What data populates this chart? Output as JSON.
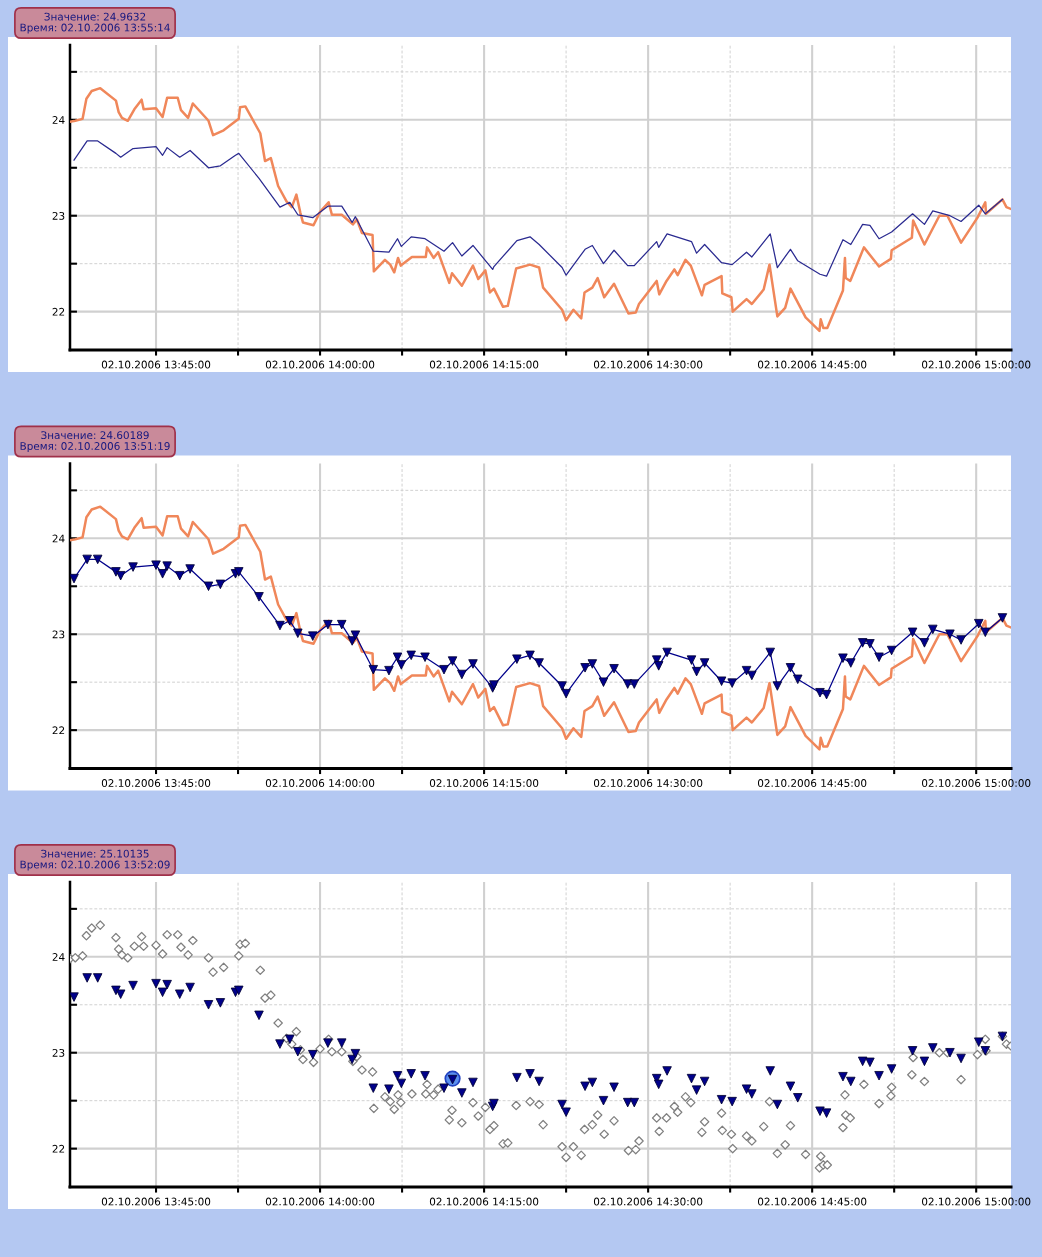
{
  "chart_data": [
    {
      "type": "line",
      "xlim": [
        "2006-10-02T13:37:08",
        "2006-10-02T15:03:11"
      ],
      "ylim": [
        21.6,
        24.78
      ],
      "grid": true,
      "xticks": [
        {
          "value": "2006-10-02T13:45",
          "label": "02.10.2006 13:45:00"
        },
        {
          "value": "2006-10-02T13:52:30",
          "label": null
        },
        {
          "value": "2006-10-02T14:00",
          "label": "02.10.2006 14:00:00"
        },
        {
          "value": "2006-10-02T14:07:30",
          "label": null
        },
        {
          "value": "2006-10-02T14:15",
          "label": "02.10.2006 14:15:00"
        },
        {
          "value": "2006-10-02T14:22:30",
          "label": null
        },
        {
          "value": "2006-10-02T14:30",
          "label": "02.10.2006 14:30:00"
        },
        {
          "value": "2006-10-02T14:37:30",
          "label": null
        },
        {
          "value": "2006-10-02T14:45",
          "label": "02.10.2006 14:45:00"
        },
        {
          "value": "2006-10-02T14:52:30",
          "label": null
        },
        {
          "value": "2006-10-02T15:00",
          "label": "02.10.2006 15:00:00"
        }
      ],
      "yticks": [
        22,
        {
          "value": 22.5,
          "label": null
        },
        23,
        {
          "value": 23.5,
          "label": null
        },
        24,
        {
          "value": 24.5,
          "label": null
        }
      ],
      "annotations": [
        "Значение: 24.9632\nВремя: 02.10.2006 13:55:14"
      ],
      "series": [
        {
          "color": "#f0875a",
          "line_style": "solid",
          "x": [
            "2006-10-02T13:37:08",
            "2006-10-02T13:37:37",
            "2006-10-02T13:38:17",
            "2006-10-02T13:38:38",
            "2006-10-02T13:39:07",
            "2006-10-02T13:39:54",
            "2006-10-02T13:41:20",
            "2006-10-02T13:41:35",
            "2006-10-02T13:41:53",
            "2006-10-02T13:42:25",
            "2006-10-02T13:43:01",
            "2006-10-02T13:43:41",
            "2006-10-02T13:43:52",
            "2006-10-02T13:45:00",
            "2006-10-02T13:45:36",
            "2006-10-02T13:46:01",
            "2006-10-02T13:46:59",
            "2006-10-02T13:47:17",
            "2006-10-02T13:47:56",
            "2006-10-02T13:48:22",
            "2006-10-02T13:49:48",
            "2006-10-02T13:50:13",
            "2006-10-02T13:51:11",
            "2006-10-02T13:52:34",
            "2006-10-02T13:52:41",
            "2006-10-02T13:53:10",
            "2006-10-02T13:54:32",
            "2006-10-02T13:54:58",
            "2006-10-02T13:55:30",
            "2006-10-02T13:56:10",
            "2006-10-02T13:56:56",
            "2006-10-02T13:57:25",
            "2006-10-02T13:57:50",
            "2006-10-02T13:58:12",
            "2006-10-02T13:58:26",
            "2006-10-02T13:59:24",
            "2006-10-02T14:00:00",
            "2006-10-02T14:00:47",
            "2006-10-02T14:01:05",
            "2006-10-02T14:01:59",
            "2006-10-02T14:03:00",
            "2006-10-02T14:03:22",
            "2006-10-02T14:03:50",
            "2006-10-02T14:04:48",
            "2006-10-02T14:04:55",
            "2006-10-02T14:05:56",
            "2006-10-02T14:06:25",
            "2006-10-02T14:06:47",
            "2006-10-02T14:07:08",
            "2006-10-02T14:07:23",
            "2006-10-02T14:08:24",
            "2006-10-02T14:09:40",
            "2006-10-02T14:09:47",
            "2006-10-02T14:10:23",
            "2006-10-02T14:10:48",
            "2006-10-02T14:11:49",
            "2006-10-02T14:12:04",
            "2006-10-02T14:12:58",
            "2006-10-02T14:13:59",
            "2006-10-02T14:14:28",
            "2006-10-02T14:15:07",
            "2006-10-02T14:15:32",
            "2006-10-02T14:15:54",
            "2006-10-02T14:16:44",
            "2006-10-02T14:17:10",
            "2006-10-02T14:17:56",
            "2006-10-02T14:19:12",
            "2006-10-02T14:20:02",
            "2006-10-02T14:20:24",
            "2006-10-02T14:22:08",
            "2006-10-02T14:22:30",
            "2006-10-02T14:23:10",
            "2006-10-02T14:23:53",
            "2006-10-02T14:24:11",
            "2006-10-02T14:24:54",
            "2006-10-02T14:25:23",
            "2006-10-02T14:25:59",
            "2006-10-02T14:26:53",
            "2006-10-02T14:28:12",
            "2006-10-02T14:28:52",
            "2006-10-02T14:29:10",
            "2006-10-02T14:30:47",
            "2006-10-02T14:31:01",
            "2006-10-02T14:31:41",
            "2006-10-02T14:32:24",
            "2006-10-02T14:32:42",
            "2006-10-02T14:33:25",
            "2006-10-02T14:33:54",
            "2006-10-02T14:34:55",
            "2006-10-02T14:35:10",
            "2006-10-02T14:36:43",
            "2006-10-02T14:36:47",
            "2006-10-02T14:37:37",
            "2006-10-02T14:37:44",
            "2006-10-02T14:39:00",
            "2006-10-02T14:39:29",
            "2006-10-02T14:40:34",
            "2006-10-02T14:41:06",
            "2006-10-02T14:41:49",
            "2006-10-02T14:42:32",
            "2006-10-02T14:43:01",
            "2006-10-02T14:44:24",
            "2006-10-02T14:45:40",
            "2006-10-02T14:45:47",
            "2006-10-02T14:46:01",
            "2006-10-02T14:46:23",
            "2006-10-02T14:47:49",
            "2006-10-02T14:48:00",
            "2006-10-02T14:48:04",
            "2006-10-02T14:48:29",
            "2006-10-02T14:49:44",
            "2006-10-02T14:51:07",
            "2006-10-02T14:52:12",
            "2006-10-02T14:52:16",
            "2006-10-02T14:54:07",
            "2006-10-02T14:54:14",
            "2006-10-02T14:55:16",
            "2006-10-02T14:56:38",
            "2006-10-02T14:57:22",
            "2006-10-02T14:58:37",
            "2006-10-02T15:00:07",
            "2006-10-02T15:00:50",
            "2006-10-02T15:00:54",
            "2006-10-02T15:02:24",
            "2006-10-02T15:02:46",
            "2006-10-02T15:03:11"
          ],
          "values": [
            23.98,
            23.99,
            24.01,
            24.22,
            24.3,
            24.33,
            24.2,
            24.08,
            24.02,
            23.99,
            24.11,
            24.21,
            24.11,
            24.12,
            24.03,
            24.23,
            24.23,
            24.1,
            24.02,
            24.17,
            23.99,
            23.84,
            23.89,
            24.01,
            24.13,
            24.14,
            23.86,
            23.57,
            23.6,
            23.31,
            23.15,
            23.09,
            23.22,
            23.03,
            22.93,
            22.9,
            23.04,
            23.14,
            23.01,
            23.01,
            22.91,
            22.96,
            22.82,
            22.8,
            22.42,
            22.54,
            22.49,
            22.41,
            22.56,
            22.48,
            22.57,
            22.57,
            22.67,
            22.56,
            22.62,
            22.3,
            22.4,
            22.27,
            22.48,
            22.34,
            22.43,
            22.2,
            22.24,
            22.05,
            22.06,
            22.45,
            22.49,
            22.46,
            22.25,
            22.02,
            21.91,
            22.02,
            21.93,
            22.2,
            22.25,
            22.35,
            22.15,
            22.29,
            21.98,
            21.99,
            22.08,
            22.32,
            22.18,
            22.32,
            22.44,
            22.38,
            22.54,
            22.48,
            22.17,
            22.28,
            22.37,
            22.19,
            22.15,
            22.0,
            22.13,
            22.08,
            22.23,
            22.49,
            21.95,
            22.04,
            22.24,
            21.94,
            21.8,
            21.92,
            21.83,
            21.83,
            22.22,
            22.56,
            22.35,
            22.32,
            22.67,
            22.47,
            22.55,
            22.64,
            22.77,
            22.95,
            22.7,
            23.0,
            23.0,
            22.72,
            22.98,
            23.14,
            23.02,
            23.17,
            23.09,
            23.07
          ]
        },
        {
          "color": "#2a2a90",
          "line_style": "solid",
          "x": [
            "2006-10-02T13:37:30",
            "2006-10-02T13:38:42",
            "2006-10-02T13:39:40",
            "2006-10-02T13:41:20",
            "2006-10-02T13:41:46",
            "2006-10-02T13:42:54",
            "2006-10-02T13:45:00",
            "2006-10-02T13:45:36",
            "2006-10-02T13:46:01",
            "2006-10-02T13:47:10",
            "2006-10-02T13:48:07",
            "2006-10-02T13:49:48",
            "2006-10-02T13:50:53",
            "2006-10-02T13:52:16",
            "2006-10-02T13:52:34",
            "2006-10-02T13:54:25",
            "2006-10-02T13:56:20",
            "2006-10-02T13:57:14",
            "2006-10-02T13:57:58",
            "2006-10-02T13:59:20",
            "2006-10-02T14:00:43",
            "2006-10-02T14:01:59",
            "2006-10-02T14:02:56",
            "2006-10-02T14:03:14",
            "2006-10-02T14:04:52",
            "2006-10-02T14:06:18",
            "2006-10-02T14:07:05",
            "2006-10-02T14:07:26",
            "2006-10-02T14:08:20",
            "2006-10-02T14:09:36",
            "2006-10-02T14:11:20",
            "2006-10-02T14:12:07",
            "2006-10-02T14:12:58",
            "2006-10-02T14:13:59",
            "2006-10-02T14:15:47",
            "2006-10-02T14:15:54",
            "2006-10-02T14:18:00",
            "2006-10-02T14:19:12",
            "2006-10-02T14:20:02",
            "2006-10-02T14:22:08",
            "2006-10-02T14:22:30",
            "2006-10-02T14:24:14",
            "2006-10-02T14:24:54",
            "2006-10-02T14:25:55",
            "2006-10-02T14:26:53",
            "2006-10-02T14:28:08",
            "2006-10-02T14:28:44",
            "2006-10-02T14:30:47",
            "2006-10-02T14:30:58",
            "2006-10-02T14:31:44",
            "2006-10-02T14:33:58",
            "2006-10-02T14:34:26",
            "2006-10-02T14:35:10",
            "2006-10-02T14:36:43",
            "2006-10-02T14:37:41",
            "2006-10-02T14:39:00",
            "2006-10-02T14:39:29",
            "2006-10-02T14:41:10",
            "2006-10-02T14:41:49",
            "2006-10-02T14:43:01",
            "2006-10-02T14:43:41",
            "2006-10-02T14:45:43",
            "2006-10-02T14:46:19",
            "2006-10-02T14:47:49",
            "2006-10-02T14:48:32",
            "2006-10-02T14:49:37",
            "2006-10-02T14:50:17",
            "2006-10-02T14:51:07",
            "2006-10-02T14:52:16",
            "2006-10-02T14:54:11",
            "2006-10-02T14:55:16",
            "2006-10-02T14:56:02",
            "2006-10-02T14:57:36",
            "2006-10-02T14:58:37",
            "2006-10-02T15:00:14",
            "2006-10-02T15:00:50",
            "2006-10-02T15:02:24"
          ],
          "values": [
            23.58,
            23.78,
            23.78,
            23.65,
            23.61,
            23.7,
            23.72,
            23.63,
            23.71,
            23.61,
            23.68,
            23.5,
            23.52,
            23.63,
            23.65,
            23.39,
            23.09,
            23.14,
            23.01,
            22.98,
            23.1,
            23.1,
            22.93,
            22.99,
            22.63,
            22.62,
            22.76,
            22.68,
            22.78,
            22.76,
            22.63,
            22.72,
            22.58,
            22.69,
            22.44,
            22.47,
            22.74,
            22.78,
            22.7,
            22.46,
            22.38,
            22.65,
            22.69,
            22.5,
            22.64,
            22.48,
            22.48,
            22.73,
            22.67,
            22.81,
            22.73,
            22.61,
            22.7,
            22.51,
            22.49,
            22.62,
            22.57,
            22.81,
            22.46,
            22.65,
            22.53,
            22.39,
            22.37,
            22.75,
            22.7,
            22.91,
            22.9,
            22.76,
            22.83,
            23.02,
            22.91,
            23.05,
            23.0,
            22.94,
            23.11,
            23.02,
            23.17
          ]
        }
      ]
    },
    {
      "type": "line",
      "xlim": [
        "2006-10-02T13:37:08",
        "2006-10-02T15:03:11"
      ],
      "ylim": [
        21.6,
        24.78
      ],
      "grid": true,
      "xticks": [
        {
          "value": "2006-10-02T13:45",
          "label": "02.10.2006 13:45:00"
        },
        {
          "value": "2006-10-02T13:52:30",
          "label": null
        },
        {
          "value": "2006-10-02T14:00",
          "label": "02.10.2006 14:00:00"
        },
        {
          "value": "2006-10-02T14:07:30",
          "label": null
        },
        {
          "value": "2006-10-02T14:15",
          "label": "02.10.2006 14:15:00"
        },
        {
          "value": "2006-10-02T14:22:30",
          "label": null
        },
        {
          "value": "2006-10-02T14:30",
          "label": "02.10.2006 14:30:00"
        },
        {
          "value": "2006-10-02T14:37:30",
          "label": null
        },
        {
          "value": "2006-10-02T14:45",
          "label": "02.10.2006 14:45:00"
        },
        {
          "value": "2006-10-02T14:52:30",
          "label": null
        },
        {
          "value": "2006-10-02T15:00",
          "label": "02.10.2006 15:00:00"
        }
      ],
      "yticks": [
        22,
        {
          "value": 22.5,
          "label": null
        },
        23,
        {
          "value": 23.5,
          "label": null
        },
        24,
        {
          "value": 24.5,
          "label": null
        }
      ],
      "annotations": [
        "Значение: 24.60189\nВремя: 02.10.2006 13:51:19"
      ],
      "series": [
        {
          "color": "#f0875a",
          "line_style": "solid",
          "x": [
            "2006-10-02T13:37:08",
            "2006-10-02T13:37:37",
            "2006-10-02T13:38:17",
            "2006-10-02T13:38:38",
            "2006-10-02T13:39:07",
            "2006-10-02T13:39:54",
            "2006-10-02T13:41:20",
            "2006-10-02T13:41:35",
            "2006-10-02T13:41:53",
            "2006-10-02T13:42:25",
            "2006-10-02T13:43:01",
            "2006-10-02T13:43:41",
            "2006-10-02T13:43:52",
            "2006-10-02T13:45:00",
            "2006-10-02T13:45:36",
            "2006-10-02T13:46:01",
            "2006-10-02T13:46:59",
            "2006-10-02T13:47:17",
            "2006-10-02T13:47:56",
            "2006-10-02T13:48:22",
            "2006-10-02T13:49:48",
            "2006-10-02T13:50:13",
            "2006-10-02T13:51:11",
            "2006-10-02T13:52:34",
            "2006-10-02T13:52:41",
            "2006-10-02T13:53:10",
            "2006-10-02T13:54:32",
            "2006-10-02T13:54:58",
            "2006-10-02T13:55:30",
            "2006-10-02T13:56:10",
            "2006-10-02T13:56:56",
            "2006-10-02T13:57:25",
            "2006-10-02T13:57:50",
            "2006-10-02T13:58:12",
            "2006-10-02T13:58:26",
            "2006-10-02T13:59:24",
            "2006-10-02T14:00:00",
            "2006-10-02T14:00:47",
            "2006-10-02T14:01:05",
            "2006-10-02T14:01:59",
            "2006-10-02T14:03:00",
            "2006-10-02T14:03:22",
            "2006-10-02T14:03:50",
            "2006-10-02T14:04:48",
            "2006-10-02T14:04:55",
            "2006-10-02T14:05:56",
            "2006-10-02T14:06:25",
            "2006-10-02T14:06:47",
            "2006-10-02T14:07:08",
            "2006-10-02T14:07:23",
            "2006-10-02T14:08:24",
            "2006-10-02T14:09:40",
            "2006-10-02T14:09:47",
            "2006-10-02T14:10:23",
            "2006-10-02T14:10:48",
            "2006-10-02T14:11:49",
            "2006-10-02T14:12:04",
            "2006-10-02T14:12:58",
            "2006-10-02T14:13:59",
            "2006-10-02T14:14:28",
            "2006-10-02T14:15:07",
            "2006-10-02T14:15:32",
            "2006-10-02T14:15:54",
            "2006-10-02T14:16:44",
            "2006-10-02T14:17:10",
            "2006-10-02T14:17:56",
            "2006-10-02T14:19:12",
            "2006-10-02T14:20:02",
            "2006-10-02T14:20:24",
            "2006-10-02T14:22:08",
            "2006-10-02T14:22:30",
            "2006-10-02T14:23:10",
            "2006-10-02T14:23:53",
            "2006-10-02T14:24:11",
            "2006-10-02T14:24:54",
            "2006-10-02T14:25:23",
            "2006-10-02T14:25:59",
            "2006-10-02T14:26:53",
            "2006-10-02T14:28:12",
            "2006-10-02T14:28:52",
            "2006-10-02T14:29:10",
            "2006-10-02T14:30:47",
            "2006-10-02T14:31:01",
            "2006-10-02T14:31:41",
            "2006-10-02T14:32:24",
            "2006-10-02T14:32:42",
            "2006-10-02T14:33:25",
            "2006-10-02T14:33:54",
            "2006-10-02T14:34:55",
            "2006-10-02T14:35:10",
            "2006-10-02T14:36:43",
            "2006-10-02T14:36:47",
            "2006-10-02T14:37:37",
            "2006-10-02T14:37:44",
            "2006-10-02T14:39:00",
            "2006-10-02T14:39:29",
            "2006-10-02T14:40:34",
            "2006-10-02T14:41:06",
            "2006-10-02T14:41:49",
            "2006-10-02T14:42:32",
            "2006-10-02T14:43:01",
            "2006-10-02T14:44:24",
            "2006-10-02T14:45:40",
            "2006-10-02T14:45:47",
            "2006-10-02T14:46:01",
            "2006-10-02T14:46:23",
            "2006-10-02T14:47:49",
            "2006-10-02T14:48:00",
            "2006-10-02T14:48:04",
            "2006-10-02T14:48:29",
            "2006-10-02T14:49:44",
            "2006-10-02T14:51:07",
            "2006-10-02T14:52:12",
            "2006-10-02T14:52:16",
            "2006-10-02T14:54:07",
            "2006-10-02T14:54:14",
            "2006-10-02T14:55:16",
            "2006-10-02T14:56:38",
            "2006-10-02T14:57:22",
            "2006-10-02T14:58:37",
            "2006-10-02T15:00:07",
            "2006-10-02T15:00:50",
            "2006-10-02T15:00:54",
            "2006-10-02T15:02:24",
            "2006-10-02T15:02:46",
            "2006-10-02T15:03:11"
          ],
          "values": [
            23.98,
            23.99,
            24.01,
            24.22,
            24.3,
            24.33,
            24.2,
            24.08,
            24.02,
            23.99,
            24.11,
            24.21,
            24.11,
            24.12,
            24.03,
            24.23,
            24.23,
            24.1,
            24.02,
            24.17,
            23.99,
            23.84,
            23.89,
            24.01,
            24.13,
            24.14,
            23.86,
            23.57,
            23.6,
            23.31,
            23.15,
            23.09,
            23.22,
            23.03,
            22.93,
            22.9,
            23.04,
            23.14,
            23.01,
            23.01,
            22.91,
            22.96,
            22.82,
            22.8,
            22.42,
            22.54,
            22.49,
            22.41,
            22.56,
            22.48,
            22.57,
            22.57,
            22.67,
            22.56,
            22.62,
            22.3,
            22.4,
            22.27,
            22.48,
            22.34,
            22.43,
            22.2,
            22.24,
            22.05,
            22.06,
            22.45,
            22.49,
            22.46,
            22.25,
            22.02,
            21.91,
            22.02,
            21.93,
            22.2,
            22.25,
            22.35,
            22.15,
            22.29,
            21.98,
            21.99,
            22.08,
            22.32,
            22.18,
            22.32,
            22.44,
            22.38,
            22.54,
            22.48,
            22.17,
            22.28,
            22.37,
            22.19,
            22.15,
            22.0,
            22.13,
            22.08,
            22.23,
            22.49,
            21.95,
            22.04,
            22.24,
            21.94,
            21.8,
            21.92,
            21.83,
            21.83,
            22.22,
            22.56,
            22.35,
            22.32,
            22.67,
            22.47,
            22.55,
            22.64,
            22.77,
            22.95,
            22.7,
            23.0,
            23.0,
            22.72,
            22.98,
            23.14,
            23.02,
            23.17,
            23.09,
            23.07
          ]
        },
        {
          "color": "#00008b",
          "line_style": "solid",
          "marker": "triangle",
          "x": [
            "2006-10-02T13:37:30",
            "2006-10-02T13:38:42",
            "2006-10-02T13:39:40",
            "2006-10-02T13:41:20",
            "2006-10-02T13:41:46",
            "2006-10-02T13:42:54",
            "2006-10-02T13:45:00",
            "2006-10-02T13:45:36",
            "2006-10-02T13:46:01",
            "2006-10-02T13:47:10",
            "2006-10-02T13:48:07",
            "2006-10-02T13:49:48",
            "2006-10-02T13:50:53",
            "2006-10-02T13:52:16",
            "2006-10-02T13:52:34",
            "2006-10-02T13:54:25",
            "2006-10-02T13:56:20",
            "2006-10-02T13:57:14",
            "2006-10-02T13:57:58",
            "2006-10-02T13:59:20",
            "2006-10-02T14:00:43",
            "2006-10-02T14:01:59",
            "2006-10-02T14:02:56",
            "2006-10-02T14:03:14",
            "2006-10-02T14:04:52",
            "2006-10-02T14:06:18",
            "2006-10-02T14:07:05",
            "2006-10-02T14:07:26",
            "2006-10-02T14:08:20",
            "2006-10-02T14:09:36",
            "2006-10-02T14:11:20",
            "2006-10-02T14:12:07",
            "2006-10-02T14:12:58",
            "2006-10-02T14:13:59",
            "2006-10-02T14:15:47",
            "2006-10-02T14:15:54",
            "2006-10-02T14:18:00",
            "2006-10-02T14:19:12",
            "2006-10-02T14:20:02",
            "2006-10-02T14:22:08",
            "2006-10-02T14:22:30",
            "2006-10-02T14:24:14",
            "2006-10-02T14:24:54",
            "2006-10-02T14:25:55",
            "2006-10-02T14:26:53",
            "2006-10-02T14:28:08",
            "2006-10-02T14:28:44",
            "2006-10-02T14:30:47",
            "2006-10-02T14:30:58",
            "2006-10-02T14:31:44",
            "2006-10-02T14:33:58",
            "2006-10-02T14:34:26",
            "2006-10-02T14:35:10",
            "2006-10-02T14:36:43",
            "2006-10-02T14:37:41",
            "2006-10-02T14:39:00",
            "2006-10-02T14:39:29",
            "2006-10-02T14:41:10",
            "2006-10-02T14:41:49",
            "2006-10-02T14:43:01",
            "2006-10-02T14:43:41",
            "2006-10-02T14:45:43",
            "2006-10-02T14:46:19",
            "2006-10-02T14:47:49",
            "2006-10-02T14:48:32",
            "2006-10-02T14:49:37",
            "2006-10-02T14:50:17",
            "2006-10-02T14:51:07",
            "2006-10-02T14:52:16",
            "2006-10-02T14:54:11",
            "2006-10-02T14:55:16",
            "2006-10-02T14:56:02",
            "2006-10-02T14:57:36",
            "2006-10-02T14:58:37",
            "2006-10-02T15:00:14",
            "2006-10-02T15:00:50",
            "2006-10-02T15:02:24"
          ],
          "values": [
            23.58,
            23.78,
            23.78,
            23.65,
            23.61,
            23.7,
            23.72,
            23.63,
            23.71,
            23.61,
            23.68,
            23.5,
            23.52,
            23.63,
            23.65,
            23.39,
            23.09,
            23.14,
            23.01,
            22.98,
            23.1,
            23.1,
            22.93,
            22.99,
            22.63,
            22.62,
            22.76,
            22.68,
            22.78,
            22.76,
            22.63,
            22.72,
            22.58,
            22.69,
            22.44,
            22.47,
            22.74,
            22.78,
            22.7,
            22.46,
            22.38,
            22.65,
            22.69,
            22.5,
            22.64,
            22.48,
            22.48,
            22.73,
            22.67,
            22.81,
            22.73,
            22.61,
            22.7,
            22.51,
            22.49,
            22.62,
            22.57,
            22.81,
            22.46,
            22.65,
            22.53,
            22.39,
            22.37,
            22.75,
            22.7,
            22.91,
            22.9,
            22.76,
            22.83,
            23.02,
            22.91,
            23.05,
            23.0,
            22.94,
            23.11,
            23.02,
            23.17
          ]
        }
      ]
    },
    {
      "type": "scatter",
      "xlim": [
        "2006-10-02T13:37:08",
        "2006-10-02T15:03:11"
      ],
      "ylim": [
        21.6,
        24.78
      ],
      "grid": true,
      "xticks": [
        {
          "value": "2006-10-02T13:45",
          "label": "02.10.2006 13:45:00"
        },
        {
          "value": "2006-10-02T13:52:30",
          "label": null
        },
        {
          "value": "2006-10-02T14:00",
          "label": "02.10.2006 14:00:00"
        },
        {
          "value": "2006-10-02T14:07:30",
          "label": null
        },
        {
          "value": "2006-10-02T14:15",
          "label": "02.10.2006 14:15:00"
        },
        {
          "value": "2006-10-02T14:22:30",
          "label": null
        },
        {
          "value": "2006-10-02T14:30",
          "label": "02.10.2006 14:30:00"
        },
        {
          "value": "2006-10-02T14:37:30",
          "label": null
        },
        {
          "value": "2006-10-02T14:45",
          "label": "02.10.2006 14:45:00"
        },
        {
          "value": "2006-10-02T14:52:30",
          "label": null
        },
        {
          "value": "2006-10-02T15:00",
          "label": "02.10.2006 15:00:00"
        }
      ],
      "yticks": [
        22,
        {
          "value": 22.5,
          "label": null
        },
        23,
        {
          "value": 23.5,
          "label": null
        },
        24,
        {
          "value": 24.5,
          "label": null
        }
      ],
      "annotations": [
        "Значение: 25.10135\nВремя: 02.10.2006 13:52:09"
      ],
      "series": [
        {
          "color": "#808080",
          "marker": "diamond",
          "x": [
            "2006-10-02T13:37:08",
            "2006-10-02T13:37:37",
            "2006-10-02T13:38:17",
            "2006-10-02T13:38:38",
            "2006-10-02T13:39:07",
            "2006-10-02T13:39:54",
            "2006-10-02T13:41:20",
            "2006-10-02T13:41:35",
            "2006-10-02T13:41:53",
            "2006-10-02T13:42:25",
            "2006-10-02T13:43:01",
            "2006-10-02T13:43:41",
            "2006-10-02T13:43:52",
            "2006-10-02T13:45:00",
            "2006-10-02T13:45:36",
            "2006-10-02T13:46:01",
            "2006-10-02T13:46:59",
            "2006-10-02T13:47:17",
            "2006-10-02T13:47:56",
            "2006-10-02T13:48:22",
            "2006-10-02T13:49:48",
            "2006-10-02T13:50:13",
            "2006-10-02T13:51:11",
            "2006-10-02T13:52:34",
            "2006-10-02T13:52:41",
            "2006-10-02T13:53:10",
            "2006-10-02T13:54:32",
            "2006-10-02T13:54:58",
            "2006-10-02T13:55:30",
            "2006-10-02T13:56:10",
            "2006-10-02T13:56:56",
            "2006-10-02T13:57:25",
            "2006-10-02T13:57:50",
            "2006-10-02T13:58:12",
            "2006-10-02T13:58:26",
            "2006-10-02T13:59:24",
            "2006-10-02T14:00:00",
            "2006-10-02T14:00:47",
            "2006-10-02T14:01:05",
            "2006-10-02T14:01:59",
            "2006-10-02T14:03:00",
            "2006-10-02T14:03:22",
            "2006-10-02T14:03:50",
            "2006-10-02T14:04:48",
            "2006-10-02T14:04:55",
            "2006-10-02T14:05:56",
            "2006-10-02T14:06:25",
            "2006-10-02T14:06:47",
            "2006-10-02T14:07:08",
            "2006-10-02T14:07:23",
            "2006-10-02T14:08:24",
            "2006-10-02T14:09:40",
            "2006-10-02T14:09:47",
            "2006-10-02T14:10:23",
            "2006-10-02T14:10:48",
            "2006-10-02T14:11:49",
            "2006-10-02T14:12:04",
            "2006-10-02T14:12:58",
            "2006-10-02T14:13:59",
            "2006-10-02T14:14:28",
            "2006-10-02T14:15:07",
            "2006-10-02T14:15:32",
            "2006-10-02T14:15:54",
            "2006-10-02T14:16:44",
            "2006-10-02T14:17:10",
            "2006-10-02T14:17:56",
            "2006-10-02T14:19:12",
            "2006-10-02T14:20:02",
            "2006-10-02T14:20:24",
            "2006-10-02T14:22:08",
            "2006-10-02T14:22:30",
            "2006-10-02T14:23:10",
            "2006-10-02T14:23:53",
            "2006-10-02T14:24:11",
            "2006-10-02T14:24:54",
            "2006-10-02T14:25:23",
            "2006-10-02T14:25:59",
            "2006-10-02T14:26:53",
            "2006-10-02T14:28:12",
            "2006-10-02T14:28:52",
            "2006-10-02T14:29:10",
            "2006-10-02T14:30:47",
            "2006-10-02T14:31:01",
            "2006-10-02T14:31:41",
            "2006-10-02T14:32:24",
            "2006-10-02T14:32:42",
            "2006-10-02T14:33:25",
            "2006-10-02T14:33:54",
            "2006-10-02T14:34:55",
            "2006-10-02T14:35:10",
            "2006-10-02T14:36:43",
            "2006-10-02T14:36:47",
            "2006-10-02T14:37:37",
            "2006-10-02T14:37:44",
            "2006-10-02T14:39:00",
            "2006-10-02T14:39:29",
            "2006-10-02T14:40:34",
            "2006-10-02T14:41:06",
            "2006-10-02T14:41:49",
            "2006-10-02T14:42:32",
            "2006-10-02T14:43:01",
            "2006-10-02T14:44:24",
            "2006-10-02T14:45:40",
            "2006-10-02T14:45:47",
            "2006-10-02T14:46:01",
            "2006-10-02T14:46:23",
            "2006-10-02T14:47:49",
            "2006-10-02T14:48:00",
            "2006-10-02T14:48:04",
            "2006-10-02T14:48:29",
            "2006-10-02T14:49:44",
            "2006-10-02T14:51:07",
            "2006-10-02T14:52:12",
            "2006-10-02T14:52:16",
            "2006-10-02T14:54:07",
            "2006-10-02T14:54:14",
            "2006-10-02T14:55:16",
            "2006-10-02T14:56:38",
            "2006-10-02T14:57:22",
            "2006-10-02T14:58:37",
            "2006-10-02T15:00:07",
            "2006-10-02T15:00:50",
            "2006-10-02T15:00:54",
            "2006-10-02T15:02:24",
            "2006-10-02T15:02:46",
            "2006-10-02T15:03:11"
          ],
          "values": [
            23.98,
            23.99,
            24.01,
            24.22,
            24.3,
            24.33,
            24.2,
            24.08,
            24.02,
            23.99,
            24.11,
            24.21,
            24.11,
            24.12,
            24.03,
            24.23,
            24.23,
            24.1,
            24.02,
            24.17,
            23.99,
            23.84,
            23.89,
            24.01,
            24.13,
            24.14,
            23.86,
            23.57,
            23.6,
            23.31,
            23.15,
            23.09,
            23.22,
            23.03,
            22.93,
            22.9,
            23.04,
            23.14,
            23.01,
            23.01,
            22.91,
            22.96,
            22.82,
            22.8,
            22.42,
            22.54,
            22.49,
            22.41,
            22.56,
            22.48,
            22.57,
            22.57,
            22.67,
            22.56,
            22.62,
            22.3,
            22.4,
            22.27,
            22.48,
            22.34,
            22.43,
            22.2,
            22.24,
            22.05,
            22.06,
            22.45,
            22.49,
            22.46,
            22.25,
            22.02,
            21.91,
            22.02,
            21.93,
            22.2,
            22.25,
            22.35,
            22.15,
            22.29,
            21.98,
            21.99,
            22.08,
            22.32,
            22.18,
            22.32,
            22.44,
            22.38,
            22.54,
            22.48,
            22.17,
            22.28,
            22.37,
            22.19,
            22.15,
            22.0,
            22.13,
            22.08,
            22.23,
            22.49,
            21.95,
            22.04,
            22.24,
            21.94,
            21.8,
            21.92,
            21.83,
            21.83,
            22.22,
            22.56,
            22.35,
            22.32,
            22.67,
            22.47,
            22.55,
            22.64,
            22.77,
            22.95,
            22.7,
            23.0,
            23.0,
            22.72,
            22.98,
            23.14,
            23.02,
            23.17,
            23.09,
            23.07
          ]
        },
        {
          "color": "#00008b",
          "marker": "triangle",
          "x": [
            "2006-10-02T13:37:30",
            "2006-10-02T13:38:42",
            "2006-10-02T13:39:40",
            "2006-10-02T13:41:20",
            "2006-10-02T13:41:46",
            "2006-10-02T13:42:54",
            "2006-10-02T13:45:00",
            "2006-10-02T13:45:36",
            "2006-10-02T13:46:01",
            "2006-10-02T13:47:10",
            "2006-10-02T13:48:07",
            "2006-10-02T13:49:48",
            "2006-10-02T13:50:53",
            "2006-10-02T13:52:16",
            "2006-10-02T13:52:34",
            "2006-10-02T13:54:25",
            "2006-10-02T13:56:20",
            "2006-10-02T13:57:14",
            "2006-10-02T13:57:58",
            "2006-10-02T13:59:20",
            "2006-10-02T14:00:43",
            "2006-10-02T14:01:59",
            "2006-10-02T14:02:56",
            "2006-10-02T14:03:14",
            "2006-10-02T14:04:52",
            "2006-10-02T14:06:18",
            "2006-10-02T14:07:05",
            "2006-10-02T14:07:26",
            "2006-10-02T14:08:20",
            "2006-10-02T14:09:36",
            "2006-10-02T14:11:20",
            "2006-10-02T14:12:07",
            "2006-10-02T14:12:58",
            "2006-10-02T14:13:59",
            "2006-10-02T14:15:47",
            "2006-10-02T14:15:54",
            "2006-10-02T14:18:00",
            "2006-10-02T14:19:12",
            "2006-10-02T14:20:02",
            "2006-10-02T14:22:08",
            "2006-10-02T14:22:30",
            "2006-10-02T14:24:14",
            "2006-10-02T14:24:54",
            "2006-10-02T14:25:55",
            "2006-10-02T14:26:53",
            "2006-10-02T14:28:08",
            "2006-10-02T14:28:44",
            "2006-10-02T14:30:47",
            "2006-10-02T14:30:58",
            "2006-10-02T14:31:44",
            "2006-10-02T14:33:58",
            "2006-10-02T14:34:26",
            "2006-10-02T14:35:10",
            "2006-10-02T14:36:43",
            "2006-10-02T14:37:41",
            "2006-10-02T14:39:00",
            "2006-10-02T14:39:29",
            "2006-10-02T14:41:10",
            "2006-10-02T14:41:49",
            "2006-10-02T14:43:01",
            "2006-10-02T14:43:41",
            "2006-10-02T14:45:43",
            "2006-10-02T14:46:19",
            "2006-10-02T14:47:49",
            "2006-10-02T14:48:32",
            "2006-10-02T14:49:37",
            "2006-10-02T14:50:17",
            "2006-10-02T14:51:07",
            "2006-10-02T14:52:16",
            "2006-10-02T14:54:11",
            "2006-10-02T14:55:16",
            "2006-10-02T14:56:02",
            "2006-10-02T14:57:36",
            "2006-10-02T14:58:37",
            "2006-10-02T15:00:14",
            "2006-10-02T15:00:50",
            "2006-10-02T15:02:24"
          ],
          "values": [
            23.58,
            23.78,
            23.78,
            23.65,
            23.61,
            23.7,
            23.72,
            23.63,
            23.71,
            23.61,
            23.68,
            23.5,
            23.52,
            23.63,
            23.65,
            23.39,
            23.09,
            23.14,
            23.01,
            22.98,
            23.1,
            23.1,
            22.93,
            22.99,
            22.63,
            22.62,
            22.76,
            22.68,
            22.78,
            22.76,
            22.63,
            22.72,
            22.58,
            22.69,
            22.44,
            22.47,
            22.74,
            22.78,
            22.7,
            22.46,
            22.38,
            22.65,
            22.69,
            22.5,
            22.64,
            22.48,
            22.48,
            22.73,
            22.67,
            22.81,
            22.73,
            22.61,
            22.7,
            22.51,
            22.49,
            22.62,
            22.57,
            22.81,
            22.46,
            22.65,
            22.53,
            22.39,
            22.37,
            22.75,
            22.7,
            22.91,
            22.9,
            22.76,
            22.83,
            23.02,
            22.91,
            23.05,
            23.0,
            22.94,
            23.11,
            23.02,
            23.17
          ]
        },
        {
          "color": "#5b8ff0",
          "marker": "circle",
          "x": [
            "2006-10-02T14:12:07"
          ],
          "values": [
            22.73
          ]
        }
      ]
    }
  ]
}
